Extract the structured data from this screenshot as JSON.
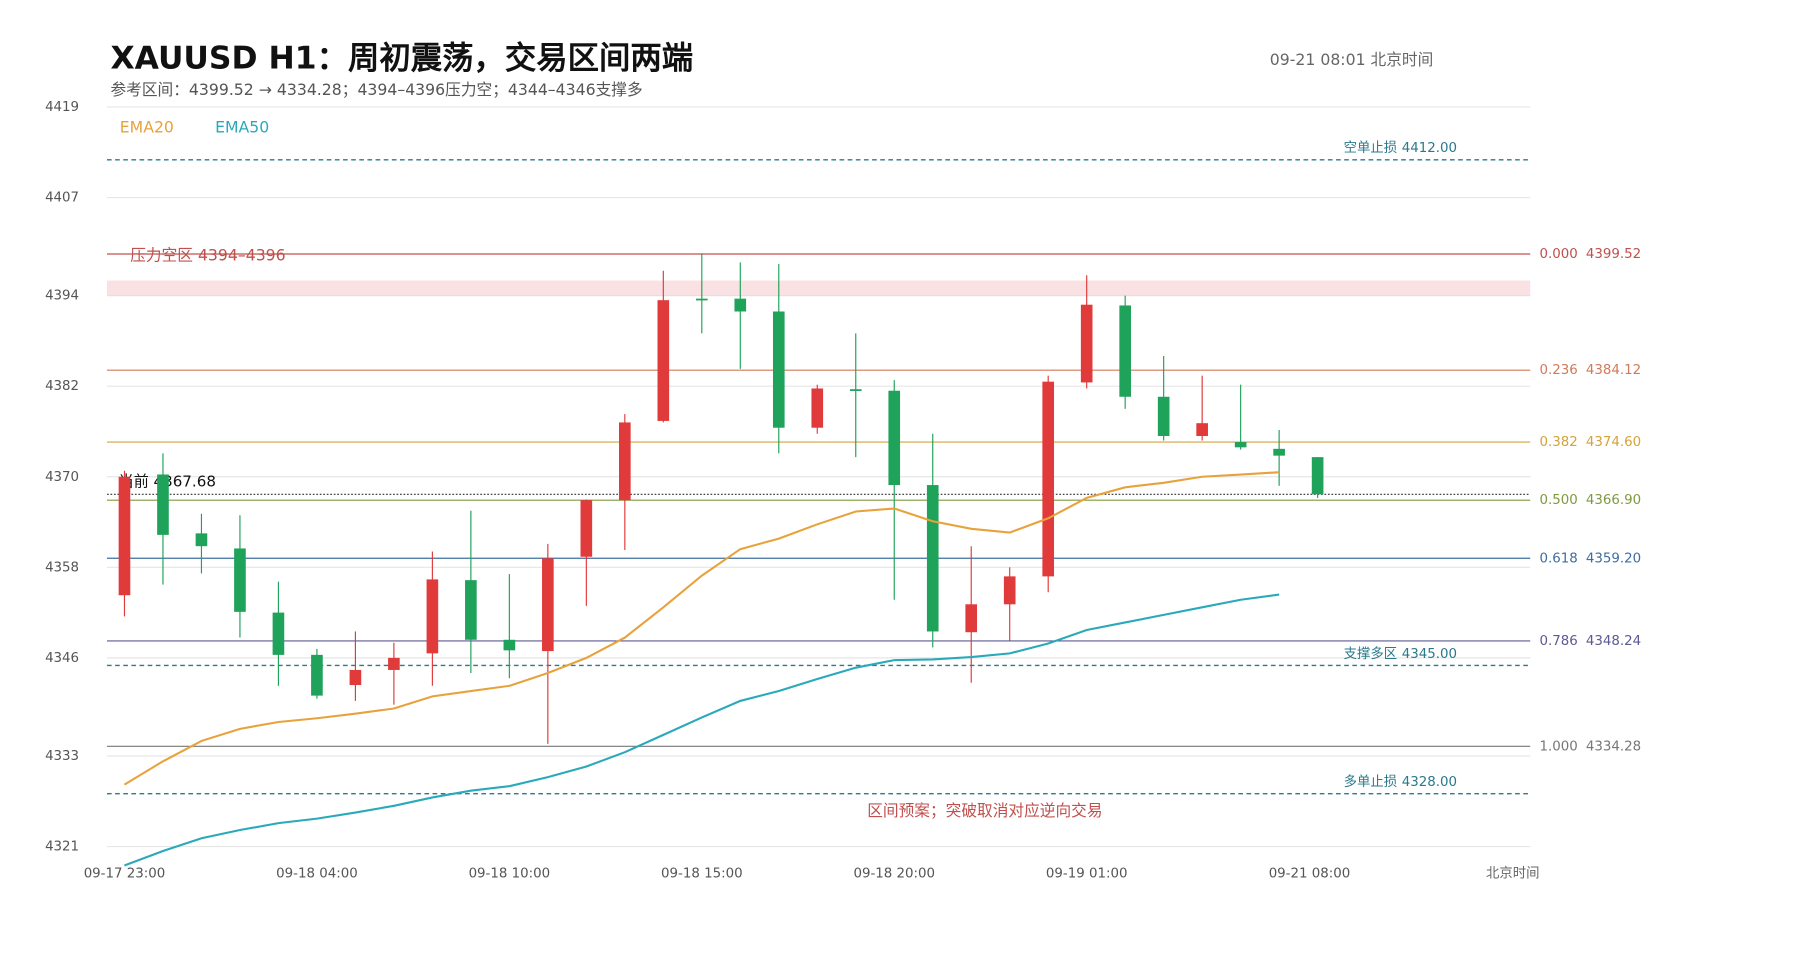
{
  "chart_data": {
    "type": "candlestick",
    "title": "XAUUSD  H1：周初震荡，交易区间两端",
    "subtitle": "参考区间：4399.52 → 4334.28；4394–4396压力空；4344–4346支撑多",
    "timestamp": "09-21  08:01 北京时间",
    "x_axis_label": "北京时间",
    "categories": [
      "09-17 23:00",
      null,
      null,
      null,
      null,
      "09-18 04:00",
      null,
      null,
      null,
      null,
      "09-18 10:00",
      null,
      null,
      null,
      null,
      "09-18 15:00",
      null,
      null,
      null,
      null,
      "09-18 20:00",
      null,
      null,
      null,
      null,
      "09-19 01:00",
      null,
      null,
      null,
      null,
      null,
      "09-21 08:00"
    ],
    "open": [
      4354.3,
      4370.3,
      4362.5,
      4360.5,
      4352.0,
      4346.4,
      4342.4,
      4344.4,
      4346.6,
      4356.3,
      4348.4,
      4346.9,
      4359.4,
      4366.9,
      4377.4,
      4393.6,
      4393.6,
      4391.9,
      4376.5,
      4381.6,
      4381.4,
      4368.9,
      4349.4,
      4353.1,
      4356.8,
      4382.5,
      4392.7,
      4380.6,
      4375.4,
      4374.6,
      4373.7,
      4372.6
    ],
    "high": [
      4370.8,
      4373.1,
      4365.1,
      4364.9,
      4356.1,
      4347.2,
      4349.5,
      4348.0,
      4360.1,
      4365.5,
      4357.1,
      4361.1,
      4367.0,
      4378.3,
      4397.3,
      4399.6,
      4398.4,
      4398.2,
      4382.2,
      4389.0,
      4382.8,
      4375.7,
      4360.8,
      4358.0,
      4383.4,
      4396.7,
      4394.0,
      4386.0,
      4383.4,
      4382.2,
      4376.2,
      4372.6
    ],
    "low": [
      4351.5,
      4355.7,
      4357.2,
      4348.7,
      4342.3,
      4340.6,
      4340.3,
      4339.8,
      4342.3,
      4344.0,
      4343.3,
      4334.6,
      4352.9,
      4360.3,
      4377.2,
      4389.0,
      4384.3,
      4373.1,
      4375.7,
      4372.6,
      4353.7,
      4347.4,
      4342.7,
      4348.3,
      4354.7,
      4381.7,
      4379.0,
      4374.8,
      4374.8,
      4373.6,
      4368.8,
      4367.2
    ],
    "close": [
      4370.0,
      4362.3,
      4360.8,
      4352.1,
      4346.4,
      4341.0,
      4344.4,
      4346.0,
      4356.4,
      4348.4,
      4347.0,
      4359.2,
      4366.9,
      4377.2,
      4393.4,
      4393.4,
      4391.9,
      4376.5,
      4381.7,
      4381.4,
      4368.9,
      4349.5,
      4353.1,
      4356.8,
      4382.6,
      4392.8,
      4380.6,
      4375.4,
      4377.1,
      4373.9,
      4372.8,
      4367.68
    ],
    "up_color": "#e03a3a",
    "down_color": "#1fa25a",
    "series": [
      {
        "name": "EMA20",
        "color": "#e8a23c",
        "values": [
          4329.2,
          4332.3,
          4335.0,
          4336.6,
          4337.5,
          4338.0,
          4338.6,
          4339.3,
          4340.9,
          4341.6,
          4342.3,
          4344.0,
          4346.0,
          4348.7,
          4352.7,
          4356.9,
          4360.4,
          4361.8,
          4363.7,
          4365.4,
          4365.8,
          4364.1,
          4363.1,
          4362.6,
          4364.5,
          4367.2,
          4368.6,
          4369.2,
          4370.0,
          4370.3,
          4370.6,
          null
        ]
      },
      {
        "name": "EMA50",
        "color": "#2aa9ba",
        "values": [
          4318.5,
          4320.4,
          4322.1,
          4323.2,
          4324.1,
          4324.7,
          4325.5,
          4326.4,
          4327.5,
          4328.4,
          4329.0,
          4330.2,
          4331.6,
          4333.5,
          4335.8,
          4338.1,
          4340.3,
          4341.6,
          4343.2,
          4344.7,
          4345.7,
          4345.8,
          4346.1,
          4346.6,
          4347.9,
          4349.7,
          4350.7,
          4351.7,
          4352.7,
          4353.7,
          4354.4,
          null
        ]
      }
    ],
    "legend": "top-left",
    "ylim": [
      4318,
      4419
    ],
    "yticks": [
      4321,
      4333,
      4346,
      4358,
      4370,
      4382,
      4394,
      4407,
      4419
    ],
    "grid": true,
    "fib_levels": [
      {
        "ratio": "0.000",
        "value": 4399.52,
        "value_label": "4399.52",
        "color": "#c0504d"
      },
      {
        "ratio": "0.236",
        "value": 4384.12,
        "value_label": "4384.12",
        "color": "#d27a5a"
      },
      {
        "ratio": "0.382",
        "value": 4374.6,
        "value_label": "4374.60",
        "color": "#d4a33a"
      },
      {
        "ratio": "0.500",
        "value": 4366.9,
        "value_label": "4366.90",
        "color": "#7f9a3e"
      },
      {
        "ratio": "0.618",
        "value": 4359.2,
        "value_label": "4359.20",
        "color": "#3d6f9e"
      },
      {
        "ratio": "0.786",
        "value": 4348.24,
        "value_label": "4348.24",
        "color": "#5c5a92"
      },
      {
        "ratio": "1.000",
        "value": 4334.28,
        "value_label": "4334.28",
        "color": "#777777"
      }
    ],
    "levels": [
      {
        "label": "空单止损",
        "value": 4412,
        "value_label": "4412.00",
        "color": "#2a7a8c"
      },
      {
        "label": "支撑多区",
        "value": 4345,
        "value_label": "4345.00",
        "color": "#2a7a8c"
      },
      {
        "label": "多单止损",
        "value": 4328,
        "value_label": "4328.00",
        "color": "#2a7a8c"
      }
    ],
    "zone": {
      "label": "压力空区  4394–4396",
      "from": 4394,
      "to": 4396,
      "color": "#f6c9cc"
    },
    "current": {
      "label": "当前",
      "value": 4367.68
    },
    "annotation": "区间预案；突破取消对应逆向交易"
  }
}
